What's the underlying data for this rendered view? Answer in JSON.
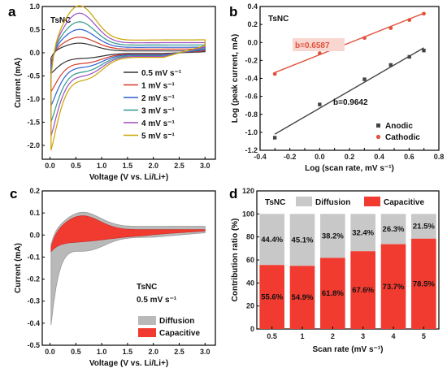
{
  "chart_data": [
    {
      "panel": "a",
      "type": "line",
      "annotation": "TsNC",
      "xlabel": "Voltage (V vs. Li/Li+)",
      "ylabel": "Current (mA)",
      "xlim": [
        -0.15,
        3.2
      ],
      "ylim": [
        -2.3,
        1.0
      ],
      "xticks": [
        "0.0",
        "0.5",
        "1.0",
        "1.5",
        "2.0",
        "2.5",
        "3.0"
      ],
      "yticks": [
        "-2.0",
        "-1.5",
        "-1.0",
        "-0.5",
        "0.0",
        "0.5",
        "1.0"
      ],
      "legend_position": "right",
      "series": [
        {
          "name": "0.5 mV s⁻¹",
          "color": "#333333",
          "rate": 0.5,
          "peak": 0.18,
          "min": -0.45,
          "tail": 0.04
        },
        {
          "name": "1 mV s⁻¹",
          "color": "#d63a2a",
          "rate": 1,
          "peak": 0.28,
          "min": -0.85,
          "tail": 0.08
        },
        {
          "name": "2 mV s⁻¹",
          "color": "#2f5fd0",
          "rate": 2,
          "peak": 0.42,
          "min": -1.15,
          "tail": 0.12
        },
        {
          "name": "3 mV s⁻¹",
          "color": "#2e9a8c",
          "rate": 3,
          "peak": 0.55,
          "min": -1.5,
          "tail": 0.17
        },
        {
          "name": "4 mV s⁻¹",
          "color": "#a04fbf",
          "rate": 4,
          "peak": 0.7,
          "min": -1.8,
          "tail": 0.22
        },
        {
          "name": "5 mV s⁻¹",
          "color": "#c9a400",
          "rate": 5,
          "peak": 0.82,
          "min": -2.1,
          "tail": 0.28
        }
      ]
    },
    {
      "panel": "b",
      "type": "scatter",
      "annotation": "TsNC",
      "xlabel": "Log (scan rate, mV s⁻¹)",
      "ylabel": "Log (peak current, mA)",
      "xlim": [
        -0.4,
        0.8
      ],
      "ylim": [
        -1.2,
        0.4
      ],
      "xticks": [
        "-0.4",
        "-0.3",
        "-0.2",
        "-0.1",
        "0.0",
        "0.1",
        "0.2",
        "0.3",
        "0.4",
        "0.5",
        "0.6",
        "0.7",
        "0.8"
      ],
      "yticks": [
        "-1.2",
        "-1.0",
        "-0.8",
        "-0.6",
        "-0.4",
        "-0.2",
        "0.0",
        "0.2",
        "0.4"
      ],
      "legend_position": "bottom-right",
      "series": [
        {
          "name": "Anodic",
          "color": "#444444",
          "marker": "square",
          "slope_label": "b=0.9642",
          "x": [
            -0.301,
            0.0,
            0.301,
            0.477,
            0.602,
            0.699
          ],
          "y": [
            -1.06,
            -0.69,
            -0.41,
            -0.25,
            -0.16,
            -0.09
          ],
          "fit": [
            [
              -0.301,
              -1.02
            ],
            [
              0.699,
              -0.06
            ]
          ]
        },
        {
          "name": "Cathodic",
          "color": "#e0523c",
          "marker": "circle",
          "slope_label": "b=0.6587",
          "x": [
            -0.301,
            0.0,
            0.301,
            0.477,
            0.602,
            0.699
          ],
          "y": [
            -0.35,
            -0.12,
            0.05,
            0.16,
            0.25,
            0.32
          ],
          "fit": [
            [
              -0.301,
              -0.335
            ],
            [
              0.699,
              0.325
            ]
          ]
        }
      ]
    },
    {
      "panel": "c",
      "type": "area",
      "annotation": "TsNC",
      "annotation2": "0.5 mV s⁻¹",
      "xlabel": "Voltage (V vs. Li/Li+)",
      "ylabel": "Current (mA)",
      "xlim": [
        -0.15,
        3.2
      ],
      "ylim": [
        -0.5,
        0.2
      ],
      "xticks": [
        "0.0",
        "0.5",
        "1.0",
        "1.5",
        "2.0",
        "2.5",
        "3.0"
      ],
      "yticks": [
        "-0.5",
        "-0.4",
        "-0.3",
        "-0.2",
        "-0.1",
        "0.0",
        "0.1",
        "0.2"
      ],
      "legend_position": "bottom-right",
      "series": [
        {
          "name": "Diffusion",
          "color": "#b9b9b9"
        },
        {
          "name": "Capacitive",
          "color": "#f23b30"
        }
      ]
    },
    {
      "panel": "d",
      "type": "bar",
      "annotation": "TsNC",
      "xlabel": "Scan rate (mV s⁻¹)",
      "ylabel": "Contribution ratio (%)",
      "ylim": [
        0,
        120
      ],
      "yticks": [
        "0",
        "20",
        "40",
        "60",
        "80",
        "100",
        "120"
      ],
      "legend_position": "top",
      "categories": [
        "0.5",
        "1",
        "2",
        "3",
        "4",
        "5"
      ],
      "series": [
        {
          "name": "Capacitive",
          "color": "#f23b30",
          "values": [
            55.6,
            54.9,
            61.8,
            67.6,
            73.7,
            78.5
          ],
          "labels": [
            "55.6%",
            "54.9%",
            "61.8%",
            "67.6%",
            "73.7%",
            "78.5%"
          ]
        },
        {
          "name": "Diffusion",
          "color": "#c8c8c8",
          "values": [
            44.4,
            45.1,
            38.2,
            32.4,
            26.3,
            21.5
          ],
          "labels": [
            "44.4%",
            "45.1%",
            "38.2%",
            "32.4%",
            "26.3%",
            "21.5%"
          ]
        }
      ]
    }
  ]
}
